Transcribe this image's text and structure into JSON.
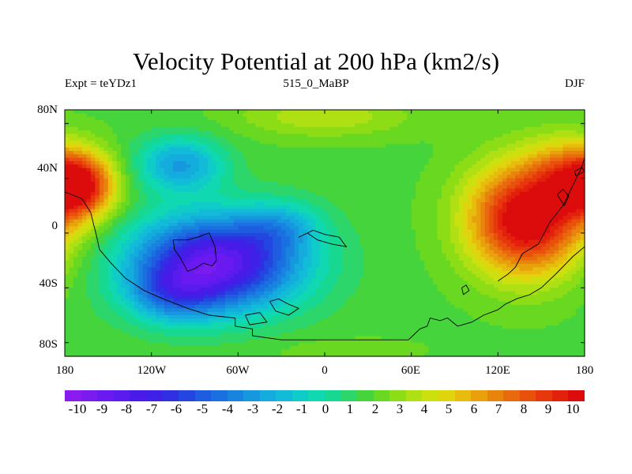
{
  "title": "Velocity Potential at 200 hPa (km2/s)",
  "subtitle_left": "Expt = teYDz1",
  "subtitle_center": "515_0_MaBP",
  "subtitle_right": "DJF",
  "axes": {
    "lat_ticks": [
      "80N",
      "40N",
      "0",
      "40S",
      "80S"
    ],
    "lon_ticks": [
      "180",
      "120W",
      "60W",
      "0",
      "60E",
      "120E",
      "180"
    ]
  },
  "colorbar": {
    "colors": [
      "#8a1cf0",
      "#7a1cf0",
      "#6a1af0",
      "#5a1cee",
      "#4a1ae8",
      "#3e20e6",
      "#2e30e2",
      "#2446e0",
      "#1e5ce0",
      "#1a70e0",
      "#1884e0",
      "#1698de",
      "#14acdc",
      "#12bcd8",
      "#10ccc8",
      "#10d8b0",
      "#16d890",
      "#2cd66a",
      "#46d43c",
      "#68d820",
      "#8cdc16",
      "#aee014",
      "#cce010",
      "#e0d40e",
      "#e8bc0c",
      "#e8a00c",
      "#e8840c",
      "#e86a0c",
      "#e8500c",
      "#e6380c",
      "#e2200c",
      "#dc0c0c"
    ],
    "labels": [
      "-10",
      "-9",
      "-8",
      "-7",
      "-6",
      "-5",
      "-4",
      "-3",
      "-2",
      "-1",
      "0",
      "1",
      "2",
      "3",
      "4",
      "5",
      "6",
      "7",
      "8",
      "9",
      "10"
    ]
  },
  "field": {
    "description_unit": "km2/s",
    "background_level": 1.8,
    "centers": [
      {
        "lon": -75,
        "lat": -22,
        "amp": -10.6,
        "slon": 58,
        "slat": 34
      },
      {
        "lon": -105,
        "lat": -45,
        "amp": -3.5,
        "slon": 30,
        "slat": 20
      },
      {
        "lon": -30,
        "lat": 5,
        "amp": -2.5,
        "slon": 28,
        "slat": 18
      },
      {
        "lon": 140,
        "lat": 10,
        "amp": 9.5,
        "slon": 40,
        "slat": 40
      },
      {
        "lon": 165,
        "lat": 45,
        "amp": 3.0,
        "slon": 25,
        "slat": 25
      },
      {
        "lon": -170,
        "lat": 35,
        "amp": 8.5,
        "slon": 24,
        "slat": 24
      },
      {
        "lon": -100,
        "lat": 50,
        "amp": -4.5,
        "slon": 30,
        "slat": 20
      },
      {
        "lon": 0,
        "lat": 85,
        "amp": 2.0,
        "slon": 60,
        "slat": 15
      },
      {
        "lon": 10,
        "lat": -85,
        "amp": 0.5,
        "slon": 60,
        "slat": 10
      }
    ]
  },
  "coastlines": [
    [
      [
        -180,
        30
      ],
      [
        -175,
        28
      ],
      [
        -168,
        25
      ],
      [
        -162,
        15
      ],
      [
        -160,
        6
      ],
      [
        -158,
        -2
      ],
      [
        -156,
        -12
      ],
      [
        -148,
        -22
      ],
      [
        -138,
        -33
      ],
      [
        -125,
        -42
      ],
      [
        -112,
        -48
      ],
      [
        -95,
        -55
      ],
      [
        -80,
        -60
      ],
      [
        -62,
        -62
      ],
      [
        -62,
        -68
      ],
      [
        -50,
        -70
      ],
      [
        -50,
        -75
      ],
      [
        -30,
        -78
      ],
      [
        10,
        -78
      ],
      [
        58,
        -78
      ],
      [
        66,
        -70
      ],
      [
        71,
        -68
      ],
      [
        73,
        -62
      ],
      [
        80,
        -64
      ],
      [
        85,
        -62
      ],
      [
        92,
        -68
      ],
      [
        102,
        -65
      ],
      [
        110,
        -60
      ],
      [
        120,
        -56
      ],
      [
        125,
        -52
      ],
      [
        133,
        -48
      ],
      [
        142,
        -45
      ],
      [
        150,
        -40
      ],
      [
        160,
        -30
      ],
      [
        172,
        -17
      ],
      [
        180,
        -10
      ]
    ],
    [
      [
        -105,
        -5
      ],
      [
        -95,
        -5
      ],
      [
        -88,
        -3
      ],
      [
        -80,
        0
      ],
      [
        -76,
        -10
      ],
      [
        -75,
        -20
      ],
      [
        -78,
        -24
      ],
      [
        -84,
        -22
      ],
      [
        -90,
        -26
      ],
      [
        -95,
        -28
      ],
      [
        -100,
        -18
      ],
      [
        -104,
        -12
      ],
      [
        -105,
        -5
      ]
    ],
    [
      [
        -18,
        -3
      ],
      [
        -12,
        0
      ],
      [
        -5,
        -5
      ],
      [
        5,
        -8
      ],
      [
        15,
        -10
      ],
      [
        10,
        -3
      ],
      [
        0,
        -1
      ],
      [
        -8,
        2
      ],
      [
        -18,
        -3
      ]
    ],
    [
      [
        -38,
        -50
      ],
      [
        -32,
        -48
      ],
      [
        -25,
        -52
      ],
      [
        -18,
        -55
      ],
      [
        -25,
        -60
      ],
      [
        -34,
        -57
      ],
      [
        -38,
        -50
      ]
    ],
    [
      [
        120,
        -35
      ],
      [
        127,
        -30
      ],
      [
        132,
        -25
      ],
      [
        137,
        -15
      ],
      [
        148,
        -8
      ],
      [
        156,
        8
      ],
      [
        165,
        20
      ],
      [
        172,
        35
      ],
      [
        178,
        48
      ],
      [
        180,
        55
      ]
    ],
    [
      [
        161,
        28
      ],
      [
        165,
        32
      ],
      [
        169,
        27
      ],
      [
        166,
        20
      ],
      [
        161,
        28
      ]
    ],
    [
      [
        173,
        45
      ],
      [
        178,
        48
      ],
      [
        180,
        45
      ],
      [
        174,
        42
      ],
      [
        173,
        45
      ]
    ],
    [
      [
        96,
        -45
      ],
      [
        100,
        -42
      ],
      [
        98,
        -38
      ],
      [
        95,
        -40
      ],
      [
        96,
        -45
      ]
    ],
    [
      [
        -55,
        -60
      ],
      [
        -45,
        -58
      ],
      [
        -40,
        -65
      ],
      [
        -52,
        -67
      ],
      [
        -55,
        -60
      ]
    ]
  ]
}
